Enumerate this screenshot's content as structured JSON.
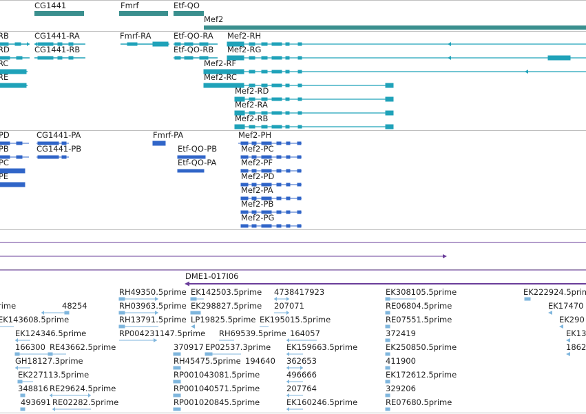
{
  "colors": {
    "gene": "#3a8f8e",
    "transcript": "#1fa2b9",
    "protein": "#3065c8",
    "clone": "#6a3d9a",
    "est": "#7fb6dd"
  },
  "gene_track": {
    "labels": [
      "CG1441",
      "Fmrf",
      "Etf-QO",
      "Mef2"
    ]
  },
  "transcript_track": {
    "labels": [
      "RB",
      "CG1441-RA",
      "Fmrf-RA",
      "Etf-QO-RA",
      "Mef2-RH",
      "RD",
      "CG1441-RB",
      "Etf-QO-RB",
      "Mef2-RG",
      "RC",
      "Mef2-RF",
      "RE",
      "Mef2-RC",
      "Mef2-RD",
      "Mef2-RA",
      "Mef2-RB"
    ]
  },
  "protein_track": {
    "labels": [
      "PD",
      "CG1441-PA",
      "Fmrf-PA",
      "Mef2-PH",
      "PB",
      "CG1441-PB",
      "Etf-QO-PB",
      "Mef2-PC",
      "PC",
      "Etf-QO-PA",
      "Mef2-PF",
      "PE",
      "Mef2-PD",
      "Mef2-PA",
      "Mef2-PB",
      "Mef2-PG"
    ]
  },
  "clone_track": {
    "labels": [
      "DME1-017I06"
    ]
  },
  "est_track": {
    "labels": [
      "RH49350.5prime",
      "EK142503.5prime",
      "4738417923",
      "EK308105.5prime",
      "EK222924.5prime",
      "rime",
      "48254",
      "RH03963.5prime",
      "EK298827.5prime",
      "207071",
      "RE06804.5prime",
      "EK17470",
      "EK143608.5prime",
      "RH13791.5prime",
      "LP19825.5prime",
      "EK195015.5prime",
      "RE07551.5prime",
      "EK290",
      "EK124346.5prime",
      "RP004231147.5prime",
      "RH69539.5prime",
      "164057",
      "372419",
      "EK13",
      "166300",
      "RE43662.5prime",
      "370917",
      "EP02537.3prime",
      "EK159663.5prime",
      "EK250850.5prime",
      "1862",
      "GH18127.3prime",
      "RH45475.5prime",
      "194640",
      "362653",
      "411900",
      "EK227113.5prime",
      "RP001043081.5prime",
      "496666",
      "EK172612.5prime",
      "348816",
      "RE29624.5prime",
      "RP001040571.5prime",
      "207764",
      "329206",
      "493691",
      "RE02282.5prime",
      "RP001020845.5prime",
      "EK160246.5prime",
      "RE07680.5prime"
    ]
  }
}
